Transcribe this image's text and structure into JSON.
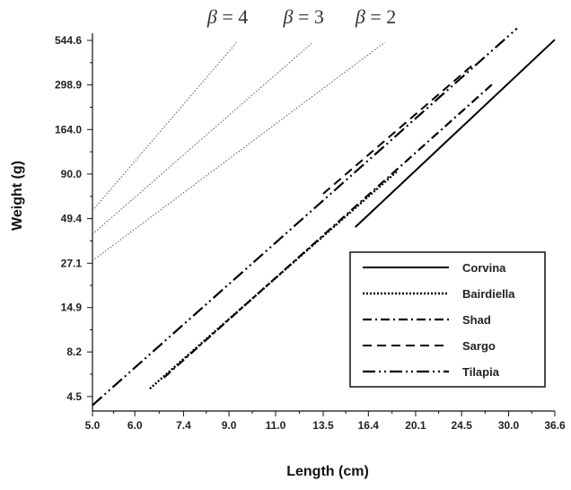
{
  "chart_data": {
    "type": "line",
    "xlabel": "Length (cm)",
    "ylabel": "Weight (g)",
    "x_scale": "log",
    "y_scale": "log",
    "xlim": [
      5.0,
      36.6
    ],
    "ylim": [
      3.7,
      600
    ],
    "x_ticks": [
      "5.0",
      "6.0",
      "7.4",
      "9.0",
      "11.0",
      "13.5",
      "16.4",
      "20.1",
      "24.5",
      "30.0",
      "36.6"
    ],
    "y_ticks": [
      "4.5",
      "8.2",
      "14.9",
      "27.1",
      "49.4",
      "90.0",
      "164.0",
      "298.9",
      "544.6"
    ],
    "grid": false,
    "legend_position": "bottom-right",
    "series": [
      {
        "name": "Corvina",
        "style": "solid",
        "x": [
          15.5,
          36.6
        ],
        "y": [
          44,
          550
        ]
      },
      {
        "name": "Bairdiella",
        "style": "dotted",
        "x": [
          6.4,
          18.6
        ],
        "y": [
          5.0,
          94
        ]
      },
      {
        "name": "Shad",
        "style": "dashdot",
        "x": [
          6.8,
          27.9
        ],
        "y": [
          5.8,
          300
        ]
      },
      {
        "name": "Sargo",
        "style": "dashed",
        "x": [
          13.5,
          25.8
        ],
        "y": [
          69,
          395
        ]
      },
      {
        "name": "Tilapia",
        "style": "dashdotdot",
        "x": [
          5.0,
          31.1
        ],
        "y": [
          4.0,
          640
        ]
      }
    ],
    "reference_lines": [
      {
        "label": "β = 4",
        "x": [
          5.0,
          9.3
        ],
        "y": [
          55,
          530
        ]
      },
      {
        "label": "β = 3",
        "x": [
          5.0,
          12.9
        ],
        "y": [
          40,
          530
        ]
      },
      {
        "label": "β = 2",
        "x": [
          5.0,
          17.6
        ],
        "y": [
          28,
          530
        ]
      }
    ]
  }
}
